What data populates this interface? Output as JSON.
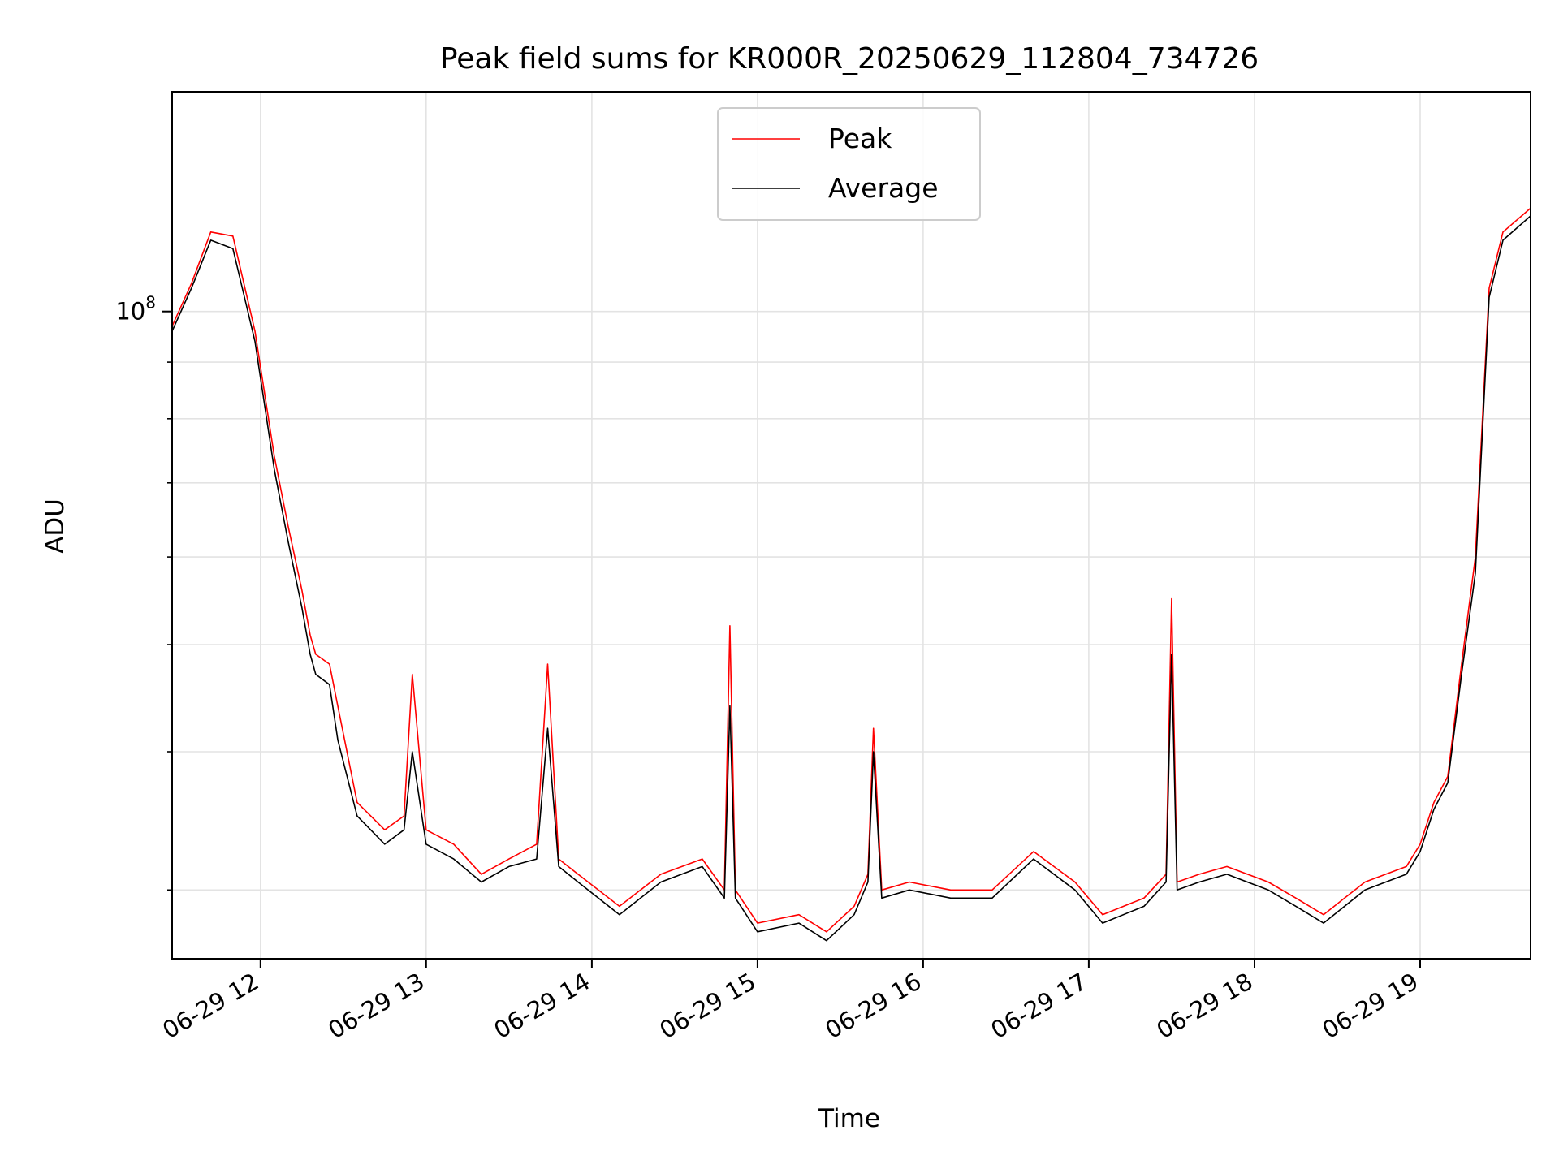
{
  "chart_data": {
    "type": "line",
    "title": "Peak field sums for KR000R_20250629_112804_734726",
    "xlabel": "Time",
    "ylabel": "ADU",
    "yscale": "log",
    "grid": true,
    "legend_position": "top-center",
    "x_range": [
      "06-29 11:28",
      "06-29 19:40"
    ],
    "y_range": [
      26000000,
      158000000
    ],
    "x_ticks": [
      "06-29 12",
      "06-29 13",
      "06-29 14",
      "06-29 15",
      "06-29 16",
      "06-29 17",
      "06-29 18",
      "06-29 19"
    ],
    "y_major_tick": {
      "value": 100000000,
      "label_base": "10",
      "label_exp": "8"
    },
    "y_minor_ticks": [
      30000000,
      40000000,
      50000000,
      60000000,
      70000000,
      80000000,
      90000000
    ],
    "x": [
      "11:28",
      "11:35",
      "11:42",
      "11:50",
      "11:58",
      "12:05",
      "12:10",
      "12:15",
      "12:18",
      "12:20",
      "12:25",
      "12:28",
      "12:35",
      "12:45",
      "12:52",
      "12:55",
      "13:00",
      "13:10",
      "13:20",
      "13:30",
      "13:40",
      "13:44",
      "13:48",
      "13:55",
      "14:10",
      "14:25",
      "14:40",
      "14:48",
      "14:50",
      "14:52",
      "15:00",
      "15:15",
      "15:25",
      "15:35",
      "15:40",
      "15:42",
      "15:45",
      "15:55",
      "16:10",
      "16:25",
      "16:40",
      "16:55",
      "17:05",
      "17:20",
      "17:28",
      "17:30",
      "17:32",
      "17:40",
      "17:50",
      "18:05",
      "18:15",
      "18:25",
      "18:40",
      "18:55",
      "19:00",
      "19:05",
      "19:10",
      "19:15",
      "19:20",
      "19:25",
      "19:30",
      "19:40"
    ],
    "series": [
      {
        "name": "Peak",
        "color": "#ff0000",
        "values": [
          97000000,
          106000000,
          118000000,
          117000000,
          96000000,
          74000000,
          64000000,
          56000000,
          51000000,
          49000000,
          48000000,
          44000000,
          36000000,
          34000000,
          35000000,
          47000000,
          34000000,
          33000000,
          31000000,
          32000000,
          33000000,
          48000000,
          32000000,
          31000000,
          29000000,
          31000000,
          32000000,
          30000000,
          52000000,
          30000000,
          28000000,
          28500000,
          27500000,
          29000000,
          31000000,
          42000000,
          30000000,
          30500000,
          30000000,
          30000000,
          32500000,
          30500000,
          28500000,
          29500000,
          31000000,
          55000000,
          30500000,
          31000000,
          31500000,
          30500000,
          29500000,
          28500000,
          30500000,
          31500000,
          33000000,
          36000000,
          38000000,
          48000000,
          60000000,
          105000000,
          118000000,
          124000000
        ]
      },
      {
        "name": "Average",
        "color": "#000000",
        "values": [
          96000000,
          105000000,
          116000000,
          114000000,
          94000000,
          72000000,
          62000000,
          54000000,
          49000000,
          47000000,
          46000000,
          41000000,
          35000000,
          33000000,
          34000000,
          40000000,
          33000000,
          32000000,
          30500000,
          31500000,
          32000000,
          42000000,
          31500000,
          30500000,
          28500000,
          30500000,
          31500000,
          29500000,
          44000000,
          29500000,
          27500000,
          28000000,
          27000000,
          28500000,
          30500000,
          40000000,
          29500000,
          30000000,
          29500000,
          29500000,
          32000000,
          30000000,
          28000000,
          29000000,
          30500000,
          49000000,
          30000000,
          30500000,
          31000000,
          30000000,
          29000000,
          28000000,
          30000000,
          31000000,
          32500000,
          35500000,
          37500000,
          47000000,
          58000000,
          103000000,
          116000000,
          122000000
        ]
      }
    ]
  }
}
